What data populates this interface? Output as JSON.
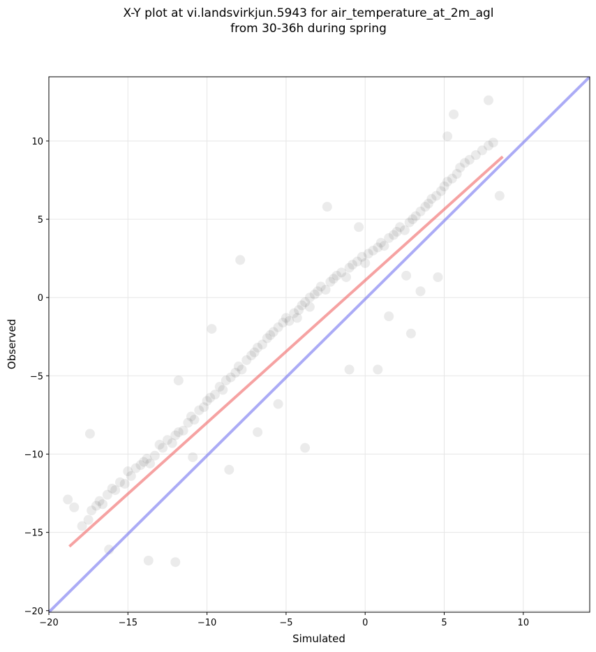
{
  "chart_data": {
    "type": "scatter",
    "title": "X-Y plot at vi.landsvirkjun.5943 for air_temperature_at_2m_agl",
    "subtitle": "from 30-36h during spring",
    "xlabel": "Simulated",
    "ylabel": "Observed",
    "xlim": [
      -20,
      14.2
    ],
    "ylim": [
      -20.1,
      14.1
    ],
    "xticks": [
      -20,
      -15,
      -10,
      -5,
      0,
      5,
      10
    ],
    "yticks": [
      -20,
      -15,
      -10,
      -5,
      0,
      5,
      10
    ],
    "xtick_labels": [
      "−20",
      "−15",
      "−10",
      "−5",
      "0",
      "5",
      "10"
    ],
    "ytick_labels": [
      "−20",
      "−15",
      "−10",
      "−5",
      "0",
      "5",
      "10"
    ],
    "grid": true,
    "point_color": "#000000",
    "point_alpha": 0.08,
    "points": {
      "x": [
        -18.8,
        -18.4,
        -17.9,
        -17.5,
        -17.3,
        -17.0,
        -16.8,
        -16.6,
        -16.3,
        -16.0,
        -15.8,
        -15.5,
        -15.2,
        -15.0,
        -14.8,
        -14.5,
        -14.2,
        -14.0,
        -13.8,
        -13.6,
        -13.3,
        -13.0,
        -12.8,
        -12.5,
        -12.2,
        -12.0,
        -11.8,
        -11.5,
        -11.2,
        -11.0,
        -10.8,
        -10.5,
        -10.2,
        -10.0,
        -9.8,
        -9.5,
        -9.2,
        -9.0,
        -8.8,
        -8.5,
        -8.2,
        -8.0,
        -7.8,
        -7.5,
        -7.2,
        -7.0,
        -6.8,
        -6.5,
        -6.2,
        -6.0,
        -5.8,
        -5.5,
        -5.2,
        -5.0,
        -4.8,
        -4.5,
        -4.2,
        -4.0,
        -3.8,
        -3.5,
        -3.2,
        -3.0,
        -2.8,
        -2.5,
        -2.2,
        -2.0,
        -1.8,
        -1.5,
        -1.2,
        -1.0,
        -0.8,
        -0.5,
        -0.2,
        0.0,
        0.2,
        0.5,
        0.8,
        1.0,
        1.2,
        1.5,
        1.8,
        2.0,
        2.2,
        2.5,
        2.8,
        3.0,
        3.2,
        3.5,
        3.8,
        4.0,
        4.2,
        4.5,
        4.8,
        5.0,
        5.2,
        5.5,
        5.8,
        6.0,
        6.3,
        6.6,
        7.0,
        7.4,
        7.8,
        8.1,
        8.5,
        -17.4,
        -13.7,
        -12.0,
        -7.9,
        -5.5,
        -3.8,
        -1.0,
        0.8,
        3.5,
        5.6,
        -11.8,
        -9.7,
        -6.8,
        -4.3,
        -2.4,
        1.5,
        2.9,
        4.6,
        7.8,
        -16.2,
        -10.9,
        -8.6,
        -3.5,
        -0.4,
        2.6,
        5.2
      ],
      "y": [
        -12.9,
        -13.4,
        -14.6,
        -14.2,
        -13.6,
        -13.3,
        -13.0,
        -13.2,
        -12.6,
        -12.2,
        -12.3,
        -11.8,
        -11.9,
        -11.1,
        -11.4,
        -10.9,
        -10.7,
        -10.5,
        -10.3,
        -10.6,
        -10.1,
        -9.4,
        -9.6,
        -9.1,
        -9.3,
        -8.8,
        -8.6,
        -8.5,
        -8.0,
        -7.6,
        -7.8,
        -7.2,
        -7.0,
        -6.6,
        -6.4,
        -6.2,
        -5.7,
        -5.9,
        -5.3,
        -5.1,
        -4.8,
        -4.4,
        -4.6,
        -4.0,
        -3.7,
        -3.5,
        -3.2,
        -3.0,
        -2.6,
        -2.4,
        -2.2,
        -1.9,
        -1.6,
        -1.3,
        -1.5,
        -1.0,
        -0.8,
        -0.5,
        -0.3,
        0.0,
        0.2,
        0.4,
        0.7,
        0.5,
        1.0,
        1.2,
        1.4,
        1.6,
        1.3,
        1.9,
        2.1,
        2.3,
        2.6,
        2.2,
        2.8,
        3.0,
        3.2,
        3.5,
        3.3,
        3.8,
        4.0,
        4.2,
        4.5,
        4.3,
        4.8,
        5.0,
        5.2,
        5.5,
        5.8,
        6.0,
        6.3,
        6.5,
        6.8,
        7.1,
        7.4,
        7.6,
        7.9,
        8.3,
        8.6,
        8.8,
        9.1,
        9.4,
        9.7,
        9.9,
        6.5,
        -8.7,
        -16.8,
        -16.9,
        2.4,
        -6.8,
        -9.6,
        -4.6,
        -4.6,
        0.4,
        11.7,
        -5.3,
        -2.0,
        -8.6,
        -1.3,
        5.8,
        -1.2,
        -2.3,
        1.3,
        12.6,
        -16.1,
        -10.2,
        -11.0,
        -0.6,
        4.5,
        1.4,
        10.3
      ]
    },
    "lines": [
      {
        "label": "red",
        "color": "#ee5555",
        "x": [
          -18.7,
          8.7
        ],
        "y": [
          -15.9,
          9.0
        ]
      },
      {
        "label": "blue",
        "color": "#6666ee",
        "x": [
          -20.0,
          14.2
        ],
        "y": [
          -20.1,
          14.1
        ]
      }
    ]
  }
}
